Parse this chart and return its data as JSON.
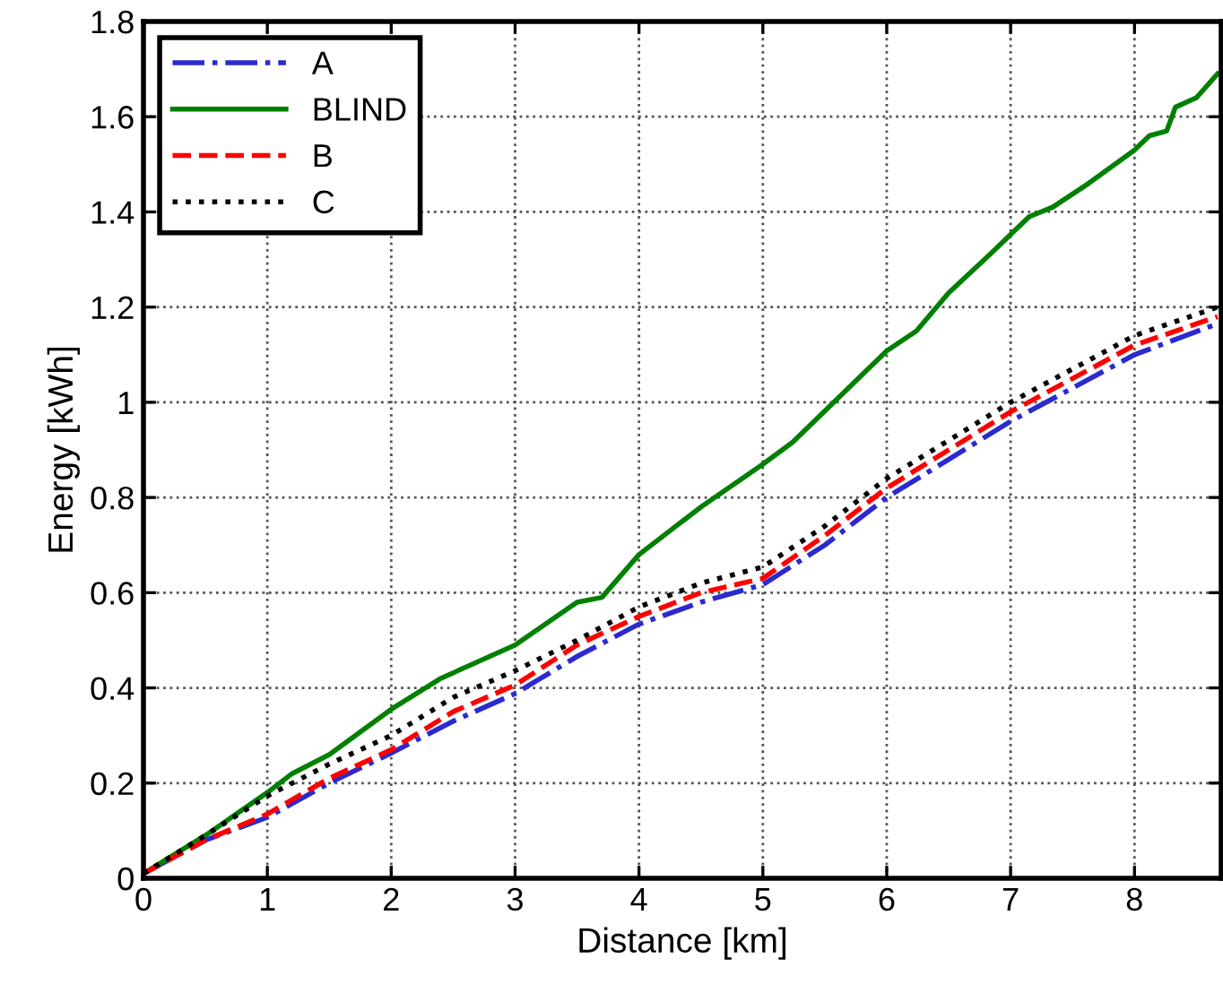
{
  "chart_data": {
    "type": "line",
    "xlabel": "Distance [km]",
    "ylabel": "Energy [kWh]",
    "xlim": [
      0,
      8.7
    ],
    "ylim": [
      0,
      1.8
    ],
    "xticks": [
      0,
      1,
      2,
      3,
      4,
      5,
      6,
      7,
      8
    ],
    "yticks": [
      0,
      0.2,
      0.4,
      0.6,
      0.8,
      1,
      1.2,
      1.4,
      1.6,
      1.8
    ],
    "grid": true,
    "legend": "top left",
    "marker": "none",
    "series": [
      {
        "name": "A",
        "color": "#2a2ad0",
        "line_style": "dashdot",
        "x": [
          0,
          0.5,
          1,
          1.5,
          2,
          2.5,
          3,
          3.5,
          4,
          4.5,
          5,
          5.5,
          6,
          6.5,
          7,
          7.5,
          8,
          8.67
        ],
        "values": [
          0.01,
          0.08,
          0.128,
          0.2,
          0.263,
          0.33,
          0.388,
          0.466,
          0.534,
          0.58,
          0.617,
          0.7,
          0.8,
          0.88,
          0.96,
          1.03,
          1.1,
          1.165
        ]
      },
      {
        "name": "BLIND",
        "color": "#008000",
        "line_style": "solid",
        "x": [
          0,
          0.5,
          1,
          1.2,
          1.5,
          2,
          2.4,
          3,
          3.5,
          3.7,
          4,
          4.5,
          5,
          5.24,
          6,
          6.24,
          6.5,
          6.83,
          7.15,
          7.34,
          7.63,
          8,
          8.12,
          8.26,
          8.33,
          8.5,
          8.67
        ],
        "values": [
          0.01,
          0.09,
          0.18,
          0.22,
          0.26,
          0.355,
          0.42,
          0.49,
          0.58,
          0.59,
          0.68,
          0.78,
          0.87,
          0.916,
          1.108,
          1.15,
          1.23,
          1.31,
          1.39,
          1.41,
          1.46,
          1.53,
          1.56,
          1.57,
          1.62,
          1.64,
          1.69
        ]
      },
      {
        "name": "B",
        "color": "#ff0000",
        "line_style": "dashed",
        "x": [
          0,
          0.5,
          1,
          1.5,
          2,
          2.5,
          3,
          3.5,
          4,
          4.5,
          5,
          5.5,
          6,
          6.5,
          7,
          7.5,
          8,
          8.67
        ],
        "values": [
          0.01,
          0.08,
          0.135,
          0.21,
          0.27,
          0.35,
          0.406,
          0.49,
          0.55,
          0.6,
          0.63,
          0.72,
          0.82,
          0.9,
          0.98,
          1.05,
          1.12,
          1.18
        ]
      },
      {
        "name": "C",
        "color": "#000000",
        "line_style": "dotted",
        "x": [
          0,
          0.5,
          1,
          1.5,
          2,
          2.5,
          3,
          3.5,
          4,
          4.5,
          5,
          5.5,
          6,
          6.5,
          7,
          7.5,
          8,
          8.67
        ],
        "values": [
          0.01,
          0.09,
          0.173,
          0.24,
          0.3,
          0.38,
          0.436,
          0.5,
          0.57,
          0.62,
          0.654,
          0.74,
          0.84,
          0.92,
          1.0,
          1.07,
          1.14,
          1.2
        ]
      }
    ]
  }
}
